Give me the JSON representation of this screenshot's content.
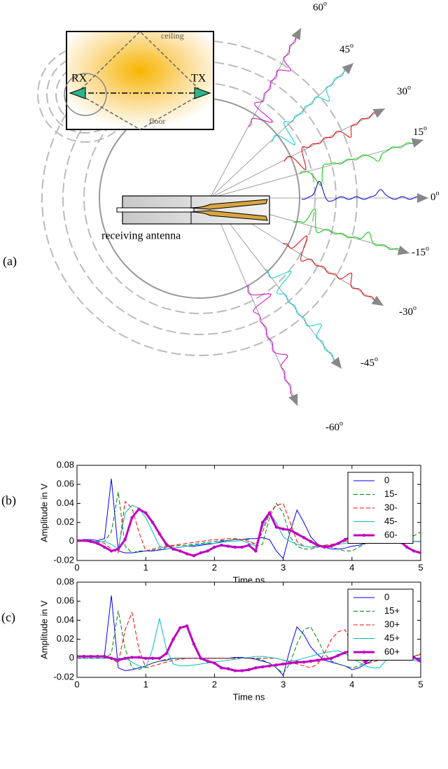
{
  "diagram": {
    "label": "(a)",
    "ceiling": "ceiling",
    "floor": "floor",
    "rx": "RX",
    "tx": "TX",
    "antenna_label": "receiving antenna",
    "angles": [
      "60",
      "45",
      "30",
      "15",
      "0",
      "-15",
      "-30",
      "-45",
      "-60"
    ],
    "degree_mark": "o"
  },
  "chart_data": [
    {
      "type": "line",
      "label": "(b)",
      "xlabel": "Time ns",
      "ylabel": "Amplitude in V",
      "xlim": [
        0,
        5
      ],
      "ylim": [
        -0.02,
        0.08
      ],
      "xticks": [
        0,
        1,
        2,
        3,
        4,
        5
      ],
      "yticks": [
        -0.02,
        0,
        0.02,
        0.04,
        0.06,
        0.08
      ],
      "x": [
        0,
        0.1,
        0.2,
        0.3,
        0.4,
        0.5,
        0.6,
        0.7,
        0.8,
        0.9,
        1,
        1.1,
        1.2,
        1.3,
        1.4,
        1.5,
        1.6,
        1.7,
        1.8,
        1.9,
        2,
        2.1,
        2.2,
        2.3,
        2.4,
        2.5,
        2.6,
        2.7,
        2.8,
        2.9,
        3,
        3.1,
        3.2,
        3.3,
        3.4,
        3.5,
        3.6,
        3.7,
        3.8,
        3.9,
        4,
        4.1,
        4.2,
        4.3,
        4.4,
        4.5,
        4.6,
        4.7,
        4.8,
        4.9,
        5
      ],
      "series": [
        {
          "name": "0",
          "color": "#0000ff",
          "linestyle": "solid",
          "linewidth": 1,
          "values": [
            0.001,
            0.002,
            0.002,
            0.001,
            0.003,
            0.066,
            -0.01,
            -0.012,
            -0.012,
            -0.011,
            -0.01,
            -0.01,
            -0.009,
            -0.008,
            -0.007,
            -0.006,
            -0.005,
            -0.005,
            -0.004,
            -0.003,
            -0.002,
            0,
            0.001,
            0.002,
            0.002,
            0.003,
            0.003,
            0.004,
            0.002,
            -0.01,
            -0.018,
            0.01,
            0.033,
            0.02,
            0.005,
            -0.003,
            -0.006,
            -0.008,
            -0.008,
            -0.007,
            -0.005,
            -0.004,
            -0.002,
            0,
            0.002,
            0.002,
            0.001,
            0,
            0,
            0,
            0
          ]
        },
        {
          "name": "15-",
          "color": "#008000",
          "linestyle": "dashed",
          "linewidth": 1,
          "values": [
            0,
            0,
            0,
            0,
            0,
            0.01,
            0.052,
            -0.005,
            -0.012,
            -0.01,
            -0.01,
            -0.009,
            -0.008,
            -0.006,
            -0.005,
            -0.004,
            -0.004,
            -0.003,
            -0.002,
            -0.001,
            0,
            0.001,
            0.001,
            0.002,
            0.002,
            0.002,
            -0.005,
            -0.003,
            0.025,
            0.04,
            0.03,
            0.005,
            -0.005,
            -0.008,
            -0.008,
            -0.006,
            -0.004,
            -0.006,
            -0.008,
            -0.01,
            -0.01,
            -0.006,
            -0.002,
            0,
            0.002,
            0.004,
            0.006,
            0.005,
            0.004,
            0.006,
            0.01
          ]
        },
        {
          "name": "30-",
          "color": "#ff0000",
          "linestyle": "dashed",
          "linewidth": 1,
          "values": [
            0,
            0,
            0,
            0,
            -0.002,
            -0.008,
            -0.012,
            0.042,
            0.035,
            0.01,
            -0.01,
            -0.008,
            -0.006,
            -0.005,
            -0.004,
            -0.003,
            -0.002,
            -0.001,
            0,
            0.001,
            0.002,
            0.002,
            0.003,
            0.003,
            0.002,
            0,
            -0.003,
            0.01,
            0.03,
            0.038,
            0.04,
            0.02,
            0,
            -0.005,
            -0.006,
            -0.005,
            -0.004,
            -0.003,
            -0.002,
            0,
            0.002,
            0.004,
            0.006,
            0.01,
            0.006,
            0.002,
            0,
            0,
            0,
            0,
            0
          ]
        },
        {
          "name": "45-",
          "color": "#00bfbf",
          "linestyle": "solid",
          "linewidth": 1,
          "values": [
            0,
            0,
            0,
            0,
            0,
            -0.003,
            -0.008,
            0.03,
            0.038,
            0.035,
            0.025,
            0.01,
            -0.005,
            -0.008,
            -0.007,
            -0.006,
            -0.005,
            -0.004,
            -0.003,
            -0.002,
            -0.002,
            -0.001,
            0,
            0,
            0.001,
            -0.002,
            -0.005,
            0.015,
            0.03,
            0.02,
            0.005,
            0,
            -0.003,
            -0.005,
            -0.006,
            -0.006,
            -0.005,
            -0.004,
            -0.003,
            -0.002,
            0,
            0.002,
            0.004,
            0.005,
            0.006,
            0.004,
            0.002,
            0,
            0,
            0,
            0
          ]
        },
        {
          "name": "60-",
          "color": "#bf00bf",
          "linestyle": "solid",
          "linewidth": 3,
          "marker": "dot",
          "values": [
            0.001,
            0.001,
            0,
            -0.002,
            -0.006,
            -0.01,
            -0.008,
            0.002,
            0.025,
            0.034,
            0.03,
            0.02,
            0.008,
            -0.003,
            -0.008,
            -0.01,
            -0.013,
            -0.015,
            -0.012,
            -0.01,
            -0.006,
            -0.004,
            -0.005,
            -0.006,
            -0.006,
            -0.004,
            -0.01,
            0.02,
            0.03,
            0.015,
            0.013,
            0.012,
            0.008,
            0.004,
            0,
            -0.004,
            -0.006,
            -0.005,
            -0.002,
            0.002,
            0.005,
            0.004,
            0.002,
            0,
            0.004,
            0.01,
            0.008,
            0,
            -0.006,
            -0.01,
            -0.012
          ]
        }
      ]
    },
    {
      "type": "line",
      "label": "(c)",
      "xlabel": "Time ns",
      "ylabel": "Amplitude in V",
      "xlim": [
        0,
        5
      ],
      "ylim": [
        -0.02,
        0.08
      ],
      "xticks": [
        0,
        1,
        2,
        3,
        4,
        5
      ],
      "yticks": [
        -0.02,
        0,
        0.02,
        0.04,
        0.06,
        0.08
      ],
      "x": [
        0,
        0.1,
        0.2,
        0.3,
        0.4,
        0.5,
        0.6,
        0.7,
        0.8,
        0.9,
        1,
        1.1,
        1.2,
        1.3,
        1.4,
        1.5,
        1.6,
        1.7,
        1.8,
        1.9,
        2,
        2.1,
        2.2,
        2.3,
        2.4,
        2.5,
        2.6,
        2.7,
        2.8,
        2.9,
        3,
        3.1,
        3.2,
        3.3,
        3.4,
        3.5,
        3.6,
        3.7,
        3.8,
        3.9,
        4,
        4.1,
        4.2,
        4.3,
        4.4,
        4.5,
        4.6,
        4.7,
        4.8,
        4.9,
        5
      ],
      "series": [
        {
          "name": "0",
          "color": "#0000ff",
          "linestyle": "solid",
          "linewidth": 1,
          "values": [
            0.002,
            0.002,
            0.002,
            0.002,
            0.003,
            0.066,
            -0.01,
            -0.013,
            -0.012,
            -0.01,
            -0.008,
            -0.005,
            -0.003,
            -0.002,
            0,
            0,
            0,
            0,
            0,
            0,
            0,
            0,
            0,
            0.001,
            0.001,
            0,
            -0.001,
            -0.003,
            -0.005,
            -0.01,
            -0.018,
            0.01,
            0.033,
            0.025,
            0.012,
            0.004,
            -0.002,
            -0.004,
            -0.006,
            -0.008,
            -0.012,
            -0.01,
            -0.006,
            -0.002,
            0.001,
            0.002,
            0.001,
            0,
            0,
            0,
            0
          ]
        },
        {
          "name": "15+",
          "color": "#008000",
          "linestyle": "dashed",
          "linewidth": 1,
          "values": [
            0,
            0,
            0,
            0,
            0,
            0.005,
            0.05,
            0.01,
            -0.01,
            -0.012,
            -0.008,
            -0.005,
            -0.003,
            -0.001,
            0,
            0,
            0,
            0,
            0,
            0,
            0,
            0,
            0,
            0,
            0,
            0,
            0,
            -0.002,
            -0.005,
            -0.01,
            -0.016,
            -0.005,
            0.015,
            0.03,
            0.033,
            0.02,
            0.005,
            -0.003,
            -0.006,
            -0.008,
            -0.01,
            -0.008,
            -0.004,
            0,
            0.002,
            0.002,
            0.001,
            0,
            0,
            0.002,
            0.005
          ]
        },
        {
          "name": "30+",
          "color": "#ff0000",
          "linestyle": "dashed",
          "linewidth": 1,
          "values": [
            0,
            0,
            0,
            0,
            0,
            0,
            -0.005,
            0.03,
            0.048,
            0.01,
            -0.01,
            -0.008,
            -0.006,
            -0.004,
            -0.002,
            -0.001,
            0,
            0,
            0,
            0,
            0,
            0,
            0,
            0,
            0,
            0,
            0,
            0,
            0,
            0,
            -0.002,
            -0.004,
            -0.006,
            -0.008,
            -0.01,
            -0.006,
            0.005,
            0.02,
            0.028,
            0.03,
            0.015,
            0,
            -0.006,
            -0.004,
            -0.002,
            0,
            0,
            0,
            0,
            0.002,
            0.004
          ]
        },
        {
          "name": "45+",
          "color": "#00bfbf",
          "linestyle": "solid",
          "linewidth": 1,
          "values": [
            0,
            0,
            0,
            0,
            0,
            0,
            0,
            0,
            -0.004,
            -0.008,
            -0.01,
            0.01,
            0.042,
            0.01,
            -0.006,
            -0.008,
            -0.008,
            -0.007,
            -0.006,
            -0.005,
            -0.004,
            -0.003,
            -0.002,
            -0.001,
            0,
            0.001,
            0.002,
            0.002,
            0.001,
            0,
            -0.002,
            -0.003,
            -0.002,
            0,
            0.002,
            0.004,
            0.006,
            0.007,
            0.008,
            0.005,
            0,
            -0.004,
            -0.008,
            -0.01,
            -0.01,
            -0.002,
            0.006,
            0.004,
            0,
            -0.002,
            -0.004
          ]
        },
        {
          "name": "60+",
          "color": "#bf00bf",
          "linestyle": "solid",
          "linewidth": 3,
          "marker": "dot",
          "values": [
            0.002,
            0.002,
            0.002,
            0.002,
            0.002,
            0,
            -0.002,
            0,
            0.001,
            0.001,
            0,
            0,
            0,
            0.005,
            0.02,
            0.032,
            0.034,
            0.015,
            0,
            -0.003,
            -0.005,
            -0.01,
            -0.011,
            -0.013,
            -0.013,
            -0.012,
            -0.01,
            -0.009,
            -0.008,
            -0.007,
            -0.006,
            -0.005,
            -0.004,
            -0.004,
            -0.003,
            -0.002,
            -0.001,
            0,
            0.003,
            0.006,
            0.008,
            0.005,
            -0.004,
            0.005,
            0.008,
            0.006,
            0.003,
            0.002,
            0.003,
            0.001,
            -0.003
          ]
        }
      ]
    }
  ]
}
